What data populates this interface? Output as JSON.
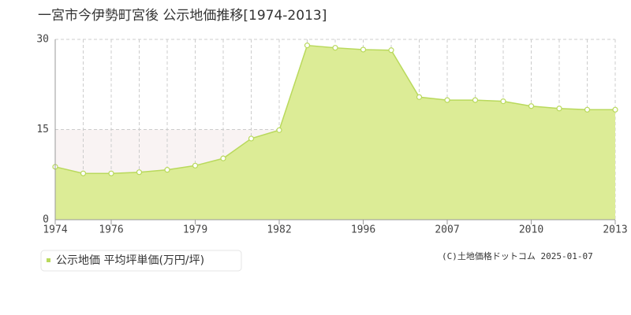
{
  "chart_data": {
    "type": "area",
    "title": "一宮市今伊勢町宮後 公示地価推移[1974-2013]",
    "categories": [
      "1974",
      null,
      "1976",
      null,
      null,
      "1979",
      null,
      null,
      "1982",
      null,
      null,
      "1996",
      null,
      null,
      "2007",
      null,
      null,
      "2010",
      null,
      null,
      "2013"
    ],
    "series": [
      {
        "name": "公示地価 平均坪単価(万円/坪)",
        "color": "#b9d95c",
        "values": [
          8.8,
          7.7,
          7.7,
          7.9,
          8.3,
          9.0,
          10.2,
          13.5,
          14.9,
          29.0,
          28.6,
          28.3,
          28.2,
          20.4,
          19.9,
          19.9,
          19.7,
          18.9,
          18.5,
          18.3,
          18.3
        ]
      }
    ],
    "ylim": [
      0,
      30
    ],
    "yticks": [
      0,
      15,
      30
    ],
    "grid": true,
    "credit": "(C)土地価格ドットコム 2025-01-07"
  }
}
